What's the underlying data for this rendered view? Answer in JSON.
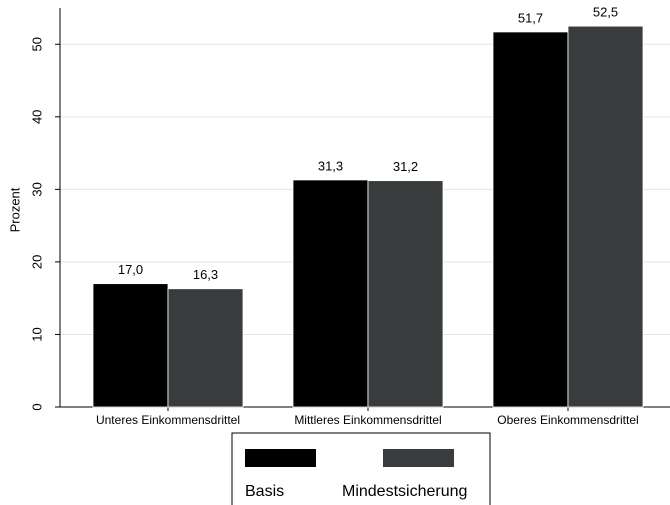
{
  "chart_data": {
    "type": "bar",
    "y_label": "Prozent",
    "categories": [
      "Unteres Einkommensdrittel",
      "Mittleres Einkommensdrittel",
      "Oberes Einkommensdrittel"
    ],
    "series": [
      {
        "name": "Basis",
        "color": "#000000",
        "values": [
          17.0,
          31.3,
          51.7
        ],
        "value_labels": [
          "17,0",
          "31,3",
          "51,7"
        ]
      },
      {
        "name": "Mindestsicherung",
        "color": "#393c3d",
        "values": [
          16.3,
          31.2,
          52.5
        ],
        "value_labels": [
          "16,3",
          "31,2",
          "52,5"
        ]
      }
    ],
    "ylim": [
      0,
      55
    ],
    "yticks": [
      0,
      10,
      20,
      30,
      40,
      50
    ],
    "grid": true
  }
}
